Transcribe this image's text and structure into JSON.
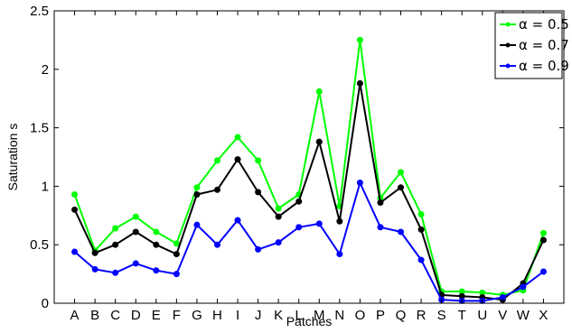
{
  "chart_data": {
    "type": "line",
    "title": "",
    "xlabel": "Patches",
    "ylabel": "Saturation s",
    "categories": [
      "A",
      "B",
      "C",
      "D",
      "E",
      "F",
      "G",
      "H",
      "I",
      "J",
      "K",
      "L",
      "M",
      "N",
      "O",
      "P",
      "Q",
      "R",
      "S",
      "T",
      "U",
      "V",
      "W",
      "X"
    ],
    "ylim": [
      0,
      2.5
    ],
    "yticks": [
      0,
      0.5,
      1,
      1.5,
      2,
      2.5
    ],
    "ytick_labels": [
      "0",
      "0.5",
      "1",
      "1.5",
      "2",
      "2.5"
    ],
    "grid": false,
    "legend_position": "top-right",
    "series": [
      {
        "name": "α = 0.5",
        "color": "#00ff00",
        "values": [
          0.93,
          0.45,
          0.64,
          0.74,
          0.61,
          0.51,
          0.99,
          1.22,
          1.42,
          1.22,
          0.81,
          0.93,
          1.81,
          0.83,
          2.25,
          0.9,
          1.12,
          0.76,
          0.1,
          0.1,
          0.09,
          0.07,
          0.11,
          0.6
        ]
      },
      {
        "name": "α = 0.7",
        "color": "#000000",
        "values": [
          0.8,
          0.43,
          0.5,
          0.61,
          0.5,
          0.42,
          0.93,
          0.97,
          1.23,
          0.95,
          0.74,
          0.87,
          1.38,
          0.7,
          1.88,
          0.86,
          0.99,
          0.63,
          0.07,
          0.06,
          0.05,
          0.03,
          0.17,
          0.54
        ]
      },
      {
        "name": "α = 0.9",
        "color": "#0000ff",
        "values": [
          0.44,
          0.29,
          0.26,
          0.34,
          0.28,
          0.25,
          0.67,
          0.5,
          0.71,
          0.46,
          0.52,
          0.65,
          0.68,
          0.42,
          1.03,
          0.65,
          0.61,
          0.37,
          0.03,
          0.02,
          0.02,
          0.05,
          0.14,
          0.27
        ]
      }
    ]
  }
}
